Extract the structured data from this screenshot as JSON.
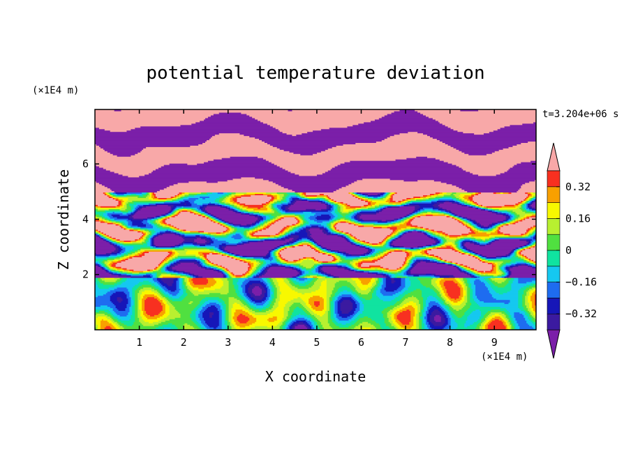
{
  "chart_data": {
    "type": "heatmap",
    "title": "potential temperature deviation",
    "time_label": "t=3.204e+06 s",
    "xlabel": "X coordinate",
    "ylabel": "Z coordinate",
    "x_unit": "(×1E4 m)",
    "y_unit": "(×1E4 m)",
    "xlim": [
      0,
      9.94
    ],
    "ylim": [
      0,
      7.97
    ],
    "x_ticks": [
      1,
      2,
      3,
      4,
      5,
      6,
      7,
      8,
      9
    ],
    "y_ticks": [
      2,
      4,
      6
    ],
    "colorbar": {
      "levels": [
        -0.4,
        -0.32,
        -0.24,
        -0.16,
        -0.08,
        0,
        0.08,
        0.16,
        0.24,
        0.32,
        0.4
      ],
      "tick_labels": [
        "0.32",
        "0.16",
        "0",
        "−0.16",
        "−0.32"
      ],
      "tick_values": [
        0.32,
        0.16,
        0,
        -0.16,
        -0.32
      ],
      "colors": [
        "#7b1fa9",
        "#3b1aa0",
        "#1616b8",
        "#1e6cf0",
        "#15c8f0",
        "#10e3a0",
        "#50e040",
        "#b8f030",
        "#f8f800",
        "#f8a000",
        "#f83020",
        "#f8a8a8"
      ]
    },
    "regions": [
      {
        "zone": "upper layers",
        "value": "alternating -0.40 / +0.40 bands"
      },
      {
        "zone": "mid layer",
        "value": "mixed -0.40 to +0.40 cells"
      },
      {
        "zone": "lower layer",
        "value": "-0.40 to +0.32 eddies"
      }
    ]
  }
}
